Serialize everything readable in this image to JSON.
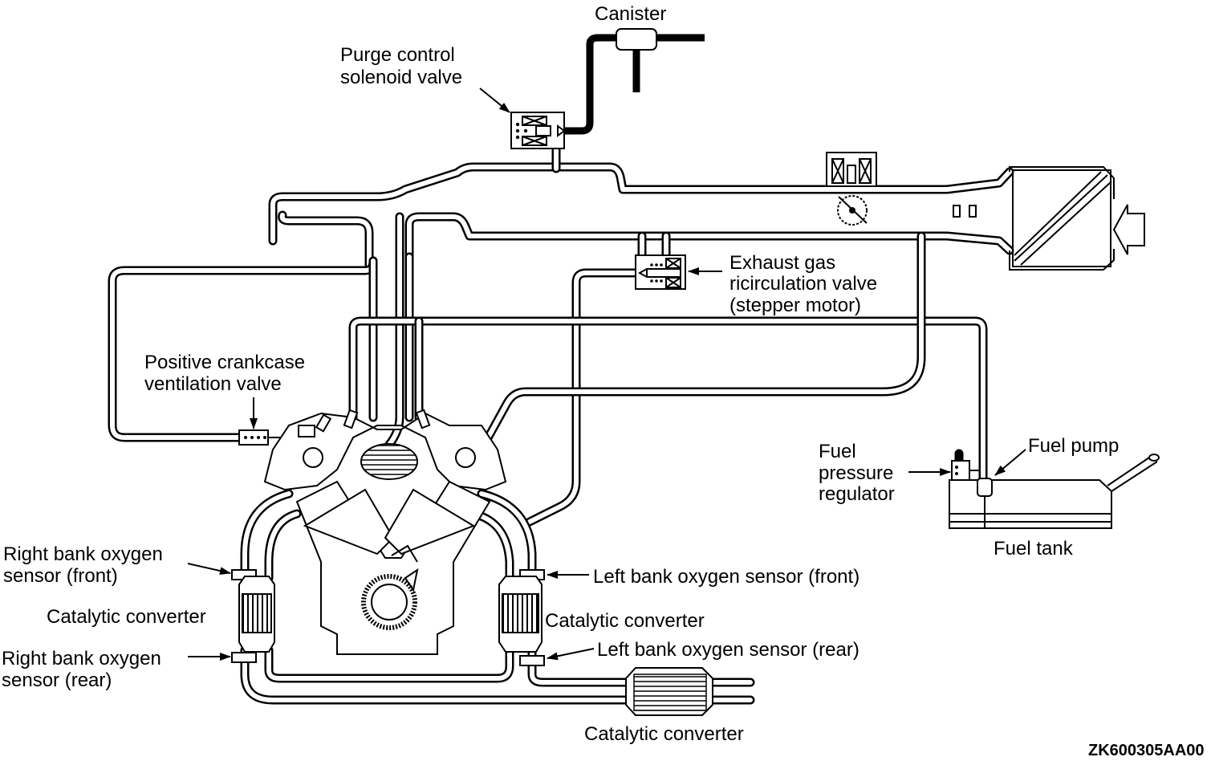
{
  "labels": {
    "canister": "Canister",
    "purge_valve_1": "Purge control",
    "purge_valve_2": "solenoid valve",
    "egr_1": "Exhaust gas",
    "egr_2": "ricirculation valve",
    "egr_3": "(stepper motor)",
    "pcv_1": "Positive crankcase",
    "pcv_2": "ventilation valve",
    "fpr_1": "Fuel",
    "fpr_2": "pressure",
    "fpr_3": "regulator",
    "fuel_pump": "Fuel pump",
    "fuel_tank": "Fuel tank",
    "rbo_front_1": "Right bank oxygen",
    "rbo_front_2": "sensor (front)",
    "lbo_front": "Left bank oxygen sensor (front)",
    "cat_right": "Catalytic converter",
    "cat_left": "Catalytic converter",
    "rbo_rear_1": "Right bank oxygen",
    "rbo_rear_2": "sensor (rear)",
    "lbo_rear": "Left bank oxygen sensor (rear)",
    "cat_main": "Catalytic converter",
    "figure_code": "ZK600305AA00"
  }
}
